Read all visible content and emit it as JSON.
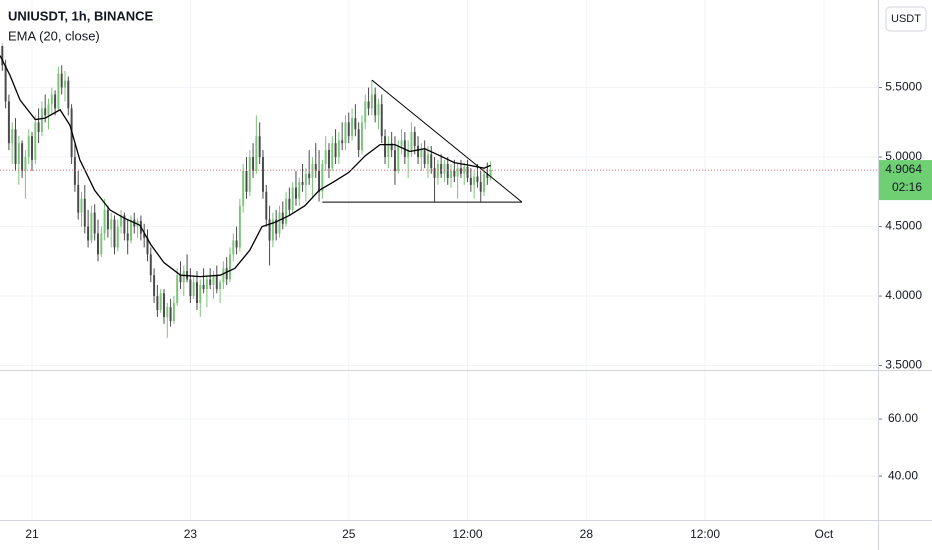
{
  "chart_data": {
    "type": "candlestick",
    "title": "UNIUSDT, 1h, BINANCE",
    "currency_button": "USDT",
    "up_color": "#7cc47a",
    "down_color": "#4a4a4a",
    "grid": true,
    "xlim": [
      -9.7,
      256.4
    ],
    "xticks": [
      {
        "value": 0,
        "label": "21"
      },
      {
        "value": 48,
        "label": "23"
      },
      {
        "value": 96,
        "label": "25"
      },
      {
        "value": 132,
        "label": "12:00"
      },
      {
        "value": 168,
        "label": "28"
      },
      {
        "value": 204,
        "label": "12:00"
      },
      {
        "value": 240,
        "label": "Oct"
      }
    ],
    "ylim": [
      3.468,
      6.13
    ],
    "yticks": [
      {
        "value": 3.5,
        "label": "3.5000"
      },
      {
        "value": 4,
        "label": "4.0000"
      },
      {
        "value": 4.5,
        "label": "4.5000"
      },
      {
        "value": 5,
        "label": "5.0000"
      },
      {
        "value": 5.5,
        "label": "5.5000"
      }
    ],
    "x": [
      -9,
      -8,
      -7,
      -6,
      -5,
      -4,
      -3,
      -2,
      -1,
      0,
      1,
      2,
      3,
      4,
      5,
      6,
      7,
      8,
      9,
      10,
      11,
      12,
      13,
      14,
      15,
      16,
      17,
      18,
      19,
      20,
      21,
      22,
      23,
      24,
      25,
      26,
      27,
      28,
      29,
      30,
      31,
      32,
      33,
      34,
      35,
      36,
      37,
      38,
      39,
      40,
      41,
      42,
      43,
      44,
      45,
      46,
      47,
      48,
      49,
      50,
      51,
      52,
      53,
      54,
      55,
      56,
      57,
      58,
      59,
      60,
      61,
      62,
      63,
      64,
      65,
      66,
      67,
      68,
      69,
      70,
      71,
      72,
      73,
      74,
      75,
      76,
      77,
      78,
      79,
      80,
      81,
      82,
      83,
      84,
      85,
      86,
      87,
      88,
      89,
      90,
      91,
      92,
      93,
      94,
      95,
      96,
      97,
      98,
      99,
      100,
      101,
      102,
      103,
      104,
      105,
      106,
      107,
      108,
      109,
      110,
      111,
      112,
      113,
      114,
      115,
      116,
      117,
      118,
      119,
      120,
      121,
      122,
      123,
      124,
      125,
      126,
      127,
      128,
      129,
      130,
      131,
      132,
      133,
      134,
      135,
      136,
      137,
      138,
      139
    ],
    "ohlc": [
      [
        5.8,
        5.82,
        5.62,
        5.66
      ],
      [
        5.66,
        5.7,
        5.35,
        5.4
      ],
      [
        5.4,
        5.45,
        5.05,
        5.1
      ],
      [
        5.1,
        5.25,
        4.95,
        5.2
      ],
      [
        5.2,
        5.28,
        4.9,
        4.95
      ],
      [
        4.95,
        5.15,
        4.8,
        5.1
      ],
      [
        5.1,
        5.12,
        4.85,
        4.9
      ],
      [
        4.9,
        5.05,
        4.7,
        5.0
      ],
      [
        5.0,
        5.2,
        4.95,
        5.15
      ],
      [
        5.15,
        5.18,
        4.9,
        4.98
      ],
      [
        4.98,
        5.3,
        4.95,
        5.25
      ],
      [
        5.25,
        5.35,
        5.1,
        5.18
      ],
      [
        5.18,
        5.4,
        5.15,
        5.35
      ],
      [
        5.35,
        5.45,
        5.25,
        5.3
      ],
      [
        5.3,
        5.42,
        5.2,
        5.38
      ],
      [
        5.38,
        5.5,
        5.3,
        5.45
      ],
      [
        5.45,
        5.48,
        5.3,
        5.35
      ],
      [
        5.35,
        5.65,
        5.33,
        5.6
      ],
      [
        5.6,
        5.66,
        5.45,
        5.5
      ],
      [
        5.5,
        5.62,
        5.4,
        5.55
      ],
      [
        5.55,
        5.58,
        5.3,
        5.35
      ],
      [
        5.35,
        5.38,
        4.95,
        5.0
      ],
      [
        5.0,
        5.1,
        4.75,
        4.8
      ],
      [
        4.8,
        4.9,
        4.55,
        4.6
      ],
      [
        4.6,
        4.75,
        4.5,
        4.7
      ],
      [
        4.7,
        4.8,
        4.45,
        4.5
      ],
      [
        4.5,
        4.62,
        4.35,
        4.4
      ],
      [
        4.4,
        4.65,
        4.38,
        4.6
      ],
      [
        4.6,
        4.66,
        4.4,
        4.45
      ],
      [
        4.45,
        4.55,
        4.25,
        4.3
      ],
      [
        4.3,
        4.5,
        4.28,
        4.45
      ],
      [
        4.45,
        4.7,
        4.4,
        4.62
      ],
      [
        4.62,
        4.65,
        4.42,
        4.48
      ],
      [
        4.48,
        4.6,
        4.35,
        4.55
      ],
      [
        4.55,
        4.58,
        4.3,
        4.35
      ],
      [
        4.35,
        4.55,
        4.32,
        4.5
      ],
      [
        4.5,
        4.62,
        4.45,
        4.58
      ],
      [
        4.58,
        4.6,
        4.4,
        4.45
      ],
      [
        4.45,
        4.55,
        4.3,
        4.4
      ],
      [
        4.4,
        4.58,
        4.38,
        4.55
      ],
      [
        4.55,
        4.6,
        4.45,
        4.5
      ],
      [
        4.5,
        4.56,
        4.42,
        4.54
      ],
      [
        4.54,
        4.58,
        4.4,
        4.45
      ],
      [
        4.45,
        4.52,
        4.35,
        4.42
      ],
      [
        4.42,
        4.48,
        4.25,
        4.3
      ],
      [
        4.3,
        4.35,
        4.1,
        4.15
      ],
      [
        4.15,
        4.2,
        3.95,
        4.0
      ],
      [
        4.0,
        4.08,
        3.85,
        3.9
      ],
      [
        3.9,
        4.05,
        3.88,
        4.02
      ],
      [
        4.02,
        4.05,
        3.8,
        3.85
      ],
      [
        3.85,
        3.95,
        3.7,
        3.92
      ],
      [
        3.92,
        3.98,
        3.78,
        3.82
      ],
      [
        3.82,
        4.0,
        3.8,
        3.95
      ],
      [
        3.95,
        4.2,
        3.93,
        4.15
      ],
      [
        4.15,
        4.25,
        4.05,
        4.1
      ],
      [
        4.1,
        4.22,
        4.0,
        4.18
      ],
      [
        4.18,
        4.3,
        4.1,
        4.12
      ],
      [
        4.12,
        4.2,
        3.95,
        4.0
      ],
      [
        4.0,
        4.15,
        3.98,
        4.1
      ],
      [
        4.1,
        4.18,
        3.9,
        3.95
      ],
      [
        3.95,
        4.12,
        3.85,
        4.08
      ],
      [
        4.08,
        4.2,
        4.02,
        4.05
      ],
      [
        4.05,
        4.15,
        3.92,
        4.12
      ],
      [
        4.12,
        4.2,
        4.05,
        4.08
      ],
      [
        4.08,
        4.18,
        3.98,
        4.15
      ],
      [
        4.15,
        4.22,
        4.02,
        4.05
      ],
      [
        4.05,
        4.12,
        3.95,
        4.1
      ],
      [
        4.1,
        4.25,
        4.05,
        4.2
      ],
      [
        4.2,
        4.28,
        4.08,
        4.12
      ],
      [
        4.12,
        4.35,
        4.1,
        4.3
      ],
      [
        4.3,
        4.45,
        4.25,
        4.4
      ],
      [
        4.4,
        4.5,
        4.3,
        4.35
      ],
      [
        4.35,
        4.7,
        4.32,
        4.65
      ],
      [
        4.65,
        4.95,
        4.6,
        4.9
      ],
      [
        4.9,
        5.0,
        4.7,
        4.75
      ],
      [
        4.75,
        5.05,
        4.72,
        5.0
      ],
      [
        5.0,
        5.1,
        4.85,
        4.9
      ],
      [
        4.9,
        5.3,
        4.88,
        5.15
      ],
      [
        5.15,
        5.25,
        4.95,
        5.0
      ],
      [
        5.0,
        5.05,
        4.7,
        4.75
      ],
      [
        4.75,
        4.8,
        4.5,
        4.55
      ],
      [
        4.55,
        4.65,
        4.22,
        4.4
      ],
      [
        4.4,
        4.6,
        4.35,
        4.55
      ],
      [
        4.55,
        4.62,
        4.4,
        4.45
      ],
      [
        4.45,
        4.65,
        4.42,
        4.6
      ],
      [
        4.6,
        4.68,
        4.48,
        4.52
      ],
      [
        4.52,
        4.75,
        4.5,
        4.7
      ],
      [
        4.7,
        4.78,
        4.58,
        4.62
      ],
      [
        4.62,
        4.82,
        4.6,
        4.78
      ],
      [
        4.78,
        4.9,
        4.65,
        4.7
      ],
      [
        4.7,
        4.85,
        4.65,
        4.82
      ],
      [
        4.82,
        4.95,
        4.75,
        4.8
      ],
      [
        4.8,
        4.92,
        4.68,
        4.88
      ],
      [
        4.88,
        5.05,
        4.8,
        4.85
      ],
      [
        4.85,
        5.0,
        4.7,
        4.95
      ],
      [
        4.95,
        5.1,
        4.85,
        4.9
      ],
      [
        4.9,
        5.05,
        4.68,
        4.75
      ],
      [
        4.75,
        4.98,
        4.7,
        4.95
      ],
      [
        4.95,
        5.15,
        4.9,
        5.05
      ],
      [
        5.05,
        5.1,
        4.85,
        4.92
      ],
      [
        4.92,
        5.15,
        4.9,
        5.1
      ],
      [
        5.1,
        5.2,
        4.95,
        5.0
      ],
      [
        5.0,
        5.18,
        4.95,
        5.12
      ],
      [
        5.12,
        5.25,
        5.05,
        5.1
      ],
      [
        5.1,
        5.3,
        5.05,
        5.25
      ],
      [
        5.25,
        5.32,
        5.1,
        5.15
      ],
      [
        5.15,
        5.35,
        5.12,
        5.28
      ],
      [
        5.28,
        5.38,
        5.15,
        5.2
      ],
      [
        5.2,
        5.25,
        5.0,
        5.05
      ],
      [
        5.05,
        5.3,
        5.02,
        5.25
      ],
      [
        5.25,
        5.45,
        5.2,
        5.4
      ],
      [
        5.4,
        5.5,
        5.3,
        5.35
      ],
      [
        5.35,
        5.55,
        5.3,
        5.45
      ],
      [
        5.45,
        5.5,
        5.25,
        5.3
      ],
      [
        5.3,
        5.42,
        5.2,
        5.38
      ],
      [
        5.38,
        5.45,
        5.1,
        5.15
      ],
      [
        5.15,
        5.2,
        4.95,
        5.0
      ],
      [
        5.0,
        5.15,
        4.92,
        5.1
      ],
      [
        5.1,
        5.18,
        5.0,
        5.05
      ],
      [
        5.05,
        5.15,
        4.8,
        4.9
      ],
      [
        4.9,
        5.12,
        4.88,
        5.08
      ],
      [
        5.08,
        5.2,
        5.02,
        5.12
      ],
      [
        5.12,
        5.18,
        4.95,
        5.0
      ],
      [
        5.0,
        5.12,
        4.85,
        5.05
      ],
      [
        5.05,
        5.25,
        5.0,
        5.18
      ],
      [
        5.18,
        5.22,
        5.02,
        5.08
      ],
      [
        5.08,
        5.15,
        4.95,
        5.0
      ],
      [
        5.0,
        5.1,
        4.9,
        5.05
      ],
      [
        5.05,
        5.12,
        4.92,
        4.95
      ],
      [
        4.95,
        5.08,
        4.85,
        5.02
      ],
      [
        5.02,
        5.08,
        4.88,
        4.92
      ],
      [
        4.92,
        5.0,
        4.68,
        4.85
      ],
      [
        4.85,
        4.98,
        4.8,
        4.95
      ],
      [
        4.95,
        5.02,
        4.85,
        4.88
      ],
      [
        4.88,
        4.98,
        4.82,
        4.95
      ],
      [
        4.95,
        5.0,
        4.8,
        4.85
      ],
      [
        4.85,
        4.95,
        4.78,
        4.9
      ],
      [
        4.9,
        4.98,
        4.82,
        4.86
      ],
      [
        4.86,
        4.95,
        4.7,
        4.92
      ],
      [
        4.92,
        4.98,
        4.85,
        4.88
      ],
      [
        4.88,
        4.96,
        4.8,
        4.93
      ],
      [
        4.93,
        4.98,
        4.82,
        4.85
      ],
      [
        4.85,
        4.92,
        4.75,
        4.8
      ],
      [
        4.8,
        4.9,
        4.7,
        4.86
      ],
      [
        4.86,
        4.95,
        4.78,
        4.82
      ],
      [
        4.82,
        4.9,
        4.68,
        4.75
      ],
      [
        4.75,
        4.92,
        4.72,
        4.88
      ],
      [
        4.88,
        4.96,
        4.8,
        4.85
      ],
      [
        4.85,
        4.97,
        4.83,
        4.9064
      ]
    ],
    "ema": {
      "name": "EMA (20, close)",
      "color": "#000000",
      "x": [
        -9.7,
        -6.7,
        -3.6,
        1,
        4,
        8.5,
        11.5,
        14.5,
        19,
        23.6,
        28,
        32.7,
        36,
        40,
        45,
        51,
        57,
        61.5,
        66,
        69.7,
        73.6,
        78,
        82.7,
        87,
        92,
        96,
        101,
        105.5,
        110,
        114.5,
        119,
        123.6,
        128,
        132.7,
        137,
        139
      ],
      "values": [
        5.73,
        5.59,
        5.41,
        5.27,
        5.28,
        5.34,
        5.23,
        4.98,
        4.76,
        4.62,
        4.56,
        4.51,
        4.37,
        4.24,
        4.15,
        4.14,
        4.15,
        4.2,
        4.33,
        4.5,
        4.53,
        4.58,
        4.65,
        4.76,
        4.83,
        4.89,
        5.01,
        5.09,
        5.09,
        5.04,
        5.06,
        5.01,
        4.96,
        4.94,
        4.92,
        4.94
      ]
    },
    "trendlines": [
      {
        "x": [
          103,
          148.5
        ],
        "y": [
          5.554,
          4.676
        ]
      },
      {
        "x": [
          88,
          148.5
        ],
        "y": [
          4.676,
          4.676
        ]
      }
    ],
    "last_price": 4.9064,
    "last_price_color": "#6fcf73",
    "countdown": "02:16",
    "subpane": {
      "ylim": [
        24.6,
        76.5
      ],
      "yticks": [
        {
          "value": 60,
          "label": "60.00"
        },
        {
          "value": 40,
          "label": "40.00"
        }
      ]
    }
  }
}
